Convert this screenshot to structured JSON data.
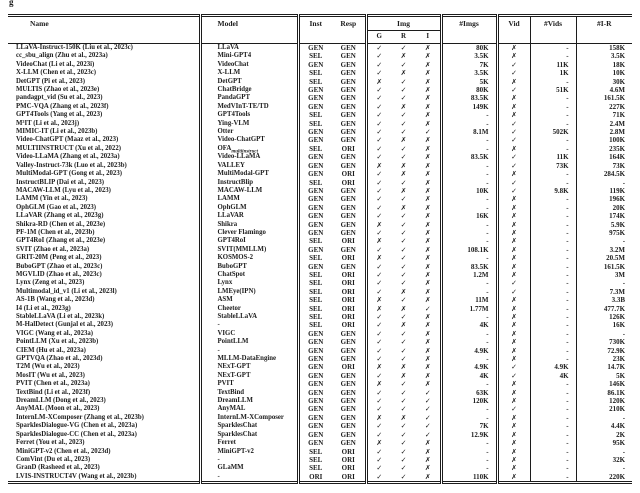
{
  "page": {
    "top_fragment": "g",
    "ink_color": "#1c1c1c",
    "background_color": "#ffffff"
  },
  "table": {
    "headers": {
      "name": "Name",
      "model": "Model",
      "inst": "Inst",
      "resp": "Resp",
      "img_group": "Img",
      "g": "G",
      "r": "R",
      "i": "I",
      "imgs": "#Imgs",
      "vid": "Vid",
      "vids": "#Vids",
      "ir": "#I-R"
    },
    "rows": [
      {
        "name": "LLaVA-Instruct-150K (Liu et al., 2023c)",
        "model": "LLaVA",
        "inst": "GEN",
        "resp": "GEN",
        "g": "✓",
        "r": "✓",
        "i": "✗",
        "imgs": "80K",
        "vid": "✗",
        "vids": "-",
        "ir": "158K"
      },
      {
        "name": "cc_sbu_align (Zhu et al., 2023a)",
        "model": "Mini-GPT4",
        "inst": "SEL",
        "resp": "GEN",
        "g": "✓",
        "r": "✗",
        "i": "✗",
        "imgs": "3.5K",
        "vid": "✗",
        "vids": "-",
        "ir": "3.5K"
      },
      {
        "name": "VideoChat (Li et al., 2023i)",
        "model": "VideoChat",
        "inst": "GEN",
        "resp": "GEN",
        "g": "✓",
        "r": "✓",
        "i": "✗",
        "imgs": "7K",
        "vid": "✓",
        "vids": "11K",
        "ir": "18K"
      },
      {
        "name": "X-LLM (Chen et al., 2023c)",
        "model": "X-LLM",
        "inst": "SEL",
        "resp": "GEN",
        "g": "✓",
        "r": "✗",
        "i": "✗",
        "imgs": "3.5K",
        "vid": "✓",
        "vids": "1K",
        "ir": "10K"
      },
      {
        "name": "DetGPT (Pi et al., 2023)",
        "model": "DetGPT",
        "inst": "SEL",
        "resp": "GEN",
        "g": "✗",
        "r": "✓",
        "i": "✗",
        "imgs": "5K",
        "vid": "✗",
        "vids": "-",
        "ir": "30K"
      },
      {
        "name": "MULTIS (Zhao et al., 2023e)",
        "model": "ChatBridge",
        "inst": "GEN",
        "resp": "GEN",
        "g": "✓",
        "r": "✓",
        "i": "✗",
        "imgs": "80K",
        "vid": "✓",
        "vids": "51K",
        "ir": "4.6M"
      },
      {
        "name": "pandagpt_vid (Su et al., 2023)",
        "model": "PandaGPT",
        "inst": "GEN",
        "resp": "GEN",
        "g": "✓",
        "r": "✓",
        "i": "✗",
        "imgs": "83.5K",
        "vid": "✗",
        "vids": "-",
        "ir": "161.5K"
      },
      {
        "name": "PMC-VQA (Zhang et al., 2023f)",
        "model": "MedVInT-TE/TD",
        "inst": "GEN",
        "resp": "GEN",
        "g": "✓",
        "r": "✗",
        "i": "✗",
        "imgs": "149K",
        "vid": "✗",
        "vids": "-",
        "ir": "227K"
      },
      {
        "name": "GPT4Tools (Yang et al., 2023)",
        "model": "GPT4Tools",
        "inst": "SEL",
        "resp": "GEN",
        "g": "✓",
        "r": "✓",
        "i": "✗",
        "imgs": "-",
        "vid": "✗",
        "vids": "-",
        "ir": "71K"
      },
      {
        "name": "M³IT (Li et al., 2023j)",
        "model": "Ying-VLM",
        "inst": "SEL",
        "resp": "GEN",
        "g": "✓",
        "r": "✓",
        "i": "✗",
        "imgs": "-",
        "vid": "✓",
        "vids": "-",
        "ir": "2.4M"
      },
      {
        "name": "MIMIC-IT (Li et al., 2023b)",
        "model": "Otter",
        "inst": "GEN",
        "resp": "GEN",
        "g": "✓",
        "r": "✓",
        "i": "✓",
        "imgs": "8.1M",
        "vid": "✓",
        "vids": "502K",
        "ir": "2.8M"
      },
      {
        "name": "Video-ChatGPT (Maaz et al., 2023)",
        "model": "Video-ChatGPT",
        "inst": "GEN",
        "resp": "GEN",
        "g": "✓",
        "r": "✗",
        "i": "✗",
        "imgs": "-",
        "vid": "✓",
        "vids": "-",
        "ir": "100K"
      },
      {
        "name": "MULTIINSTRUCT (Xu et al., 2022)",
        "model": "OFA",
        "model_sub": "multiinstruct",
        "inst": "SEL",
        "resp": "ORI",
        "g": "✓",
        "r": "✓",
        "i": "✗",
        "imgs": "-",
        "vid": "✗",
        "vids": "-",
        "ir": "235K"
      },
      {
        "name": "Video-LLaMA (Zhang et al., 2023a)",
        "model": "Video-LLaMA",
        "inst": "GEN",
        "resp": "GEN",
        "g": "✓",
        "r": "✓",
        "i": "✗",
        "imgs": "83.5K",
        "vid": "✓",
        "vids": "11K",
        "ir": "164K"
      },
      {
        "name": "Valley-Instruct-73k (Luo et al., 2023b)",
        "model": "VALLEY",
        "inst": "GEN",
        "resp": "GEN",
        "g": "✗",
        "r": "✗",
        "i": "✗",
        "imgs": "-",
        "vid": "✓",
        "vids": "73K",
        "ir": "73K"
      },
      {
        "name": "MultiModal-GPT (Gong et al., 2023)",
        "model": "MultiModal-GPT",
        "inst": "GEN",
        "resp": "ORI",
        "g": "✓",
        "r": "✗",
        "i": "✗",
        "imgs": "-",
        "vid": "✗",
        "vids": "-",
        "ir": "284.5K"
      },
      {
        "name": "InstructBLIP (Dai et al., 2023)",
        "model": "InstructBlip",
        "inst": "SEL",
        "resp": "ORI",
        "g": "✓",
        "r": "✓",
        "i": "✗",
        "imgs": "-",
        "vid": "✓",
        "vids": "-",
        "ir": "-"
      },
      {
        "name": "MACAW-LLM (Lyu et al., 2023)",
        "model": "MACAW-LLM",
        "inst": "GEN",
        "resp": "GEN",
        "g": "✓",
        "r": "✗",
        "i": "✗",
        "imgs": "10K",
        "vid": "✓",
        "vids": "9.8K",
        "ir": "119K"
      },
      {
        "name": "LAMM (Yin et al., 2023)",
        "model": "LAMM",
        "inst": "GEN",
        "resp": "GEN",
        "g": "✓",
        "r": "✓",
        "i": "✗",
        "imgs": "-",
        "vid": "✗",
        "vids": "-",
        "ir": "196K"
      },
      {
        "name": "OphGLM (Gao et al., 2023)",
        "model": "OphGLM",
        "inst": "GEN",
        "resp": "GEN",
        "g": "✓",
        "r": "✗",
        "i": "✗",
        "imgs": "-",
        "vid": "✗",
        "vids": "-",
        "ir": "20K"
      },
      {
        "name": "LLaVAR (Zhang et al., 2023g)",
        "model": "LLaVAR",
        "inst": "GEN",
        "resp": "GEN",
        "g": "✓",
        "r": "✓",
        "i": "✗",
        "imgs": "16K",
        "vid": "✗",
        "vids": "-",
        "ir": "174K"
      },
      {
        "name": "Shikra-RD (Chen et al., 2023e)",
        "model": "Shikra",
        "inst": "GEN",
        "resp": "GEN",
        "g": "✗",
        "r": "✓",
        "i": "✗",
        "imgs": "-",
        "vid": "✗",
        "vids": "-",
        "ir": "5.9K"
      },
      {
        "name": "PF-1M (Chen et al., 2023b)",
        "model": "Clever Flamingo",
        "inst": "GEN",
        "resp": "GEN",
        "g": "✓",
        "r": "✓",
        "i": "✗",
        "imgs": "-",
        "vid": "✗",
        "vids": "-",
        "ir": "975K"
      },
      {
        "name": "GPT4RoI (Zhang et al., 2023e)",
        "model": "GPT4RoI",
        "inst": "SEL",
        "resp": "ORI",
        "g": "✗",
        "r": "✓",
        "i": "✗",
        "imgs": "-",
        "vid": "✗",
        "vids": "-",
        "ir": "-"
      },
      {
        "name": "SVIT (Zhao et al., 2023a)",
        "model": "SVIT(MMLLM)",
        "inst": "GEN",
        "resp": "GEN",
        "g": "✓",
        "r": "✓",
        "i": "✗",
        "imgs": "108.1K",
        "vid": "✗",
        "vids": "-",
        "ir": "3.2M"
      },
      {
        "name": "GRIT-20M (Peng et al., 2023)",
        "model": "KOSMOS-2",
        "inst": "SEL",
        "resp": "ORI",
        "g": "✗",
        "r": "✓",
        "i": "✗",
        "imgs": "-",
        "vid": "✗",
        "vids": "-",
        "ir": "20.5M"
      },
      {
        "name": "BuboGPT (Zhao et al., 2023c)",
        "model": "BuboGPT",
        "inst": "GEN",
        "resp": "GEN",
        "g": "✓",
        "r": "✓",
        "i": "✗",
        "imgs": "83.5K",
        "vid": "✗",
        "vids": "-",
        "ir": "161.5K"
      },
      {
        "name": "MGVLID (Zhao et al., 2023c)",
        "model": "ChatSpot",
        "inst": "SEL",
        "resp": "ORI",
        "g": "✓",
        "r": "✓",
        "i": "✗",
        "imgs": "1.2M",
        "vid": "✗",
        "vids": "-",
        "ir": "3M"
      },
      {
        "name": "Lynx (Zeng et al., 2023)",
        "model": "Lynx",
        "inst": "SEL",
        "resp": "ORI",
        "g": "✓",
        "r": "✓",
        "i": "✗",
        "imgs": "-",
        "vid": "✓",
        "vids": "-",
        "ir": "-"
      },
      {
        "name": "Multimodal_id_v1 (Li et al., 2023l)",
        "model": "LMEye(IPN)",
        "inst": "SEL",
        "resp": "ORI",
        "g": "✓",
        "r": "✗",
        "i": "✗",
        "imgs": "-",
        "vid": "✓",
        "vids": "-",
        "ir": "7.3M"
      },
      {
        "name": "AS-1B (Wang et al., 2023d)",
        "model": "ASM",
        "inst": "SEL",
        "resp": "ORI",
        "g": "✗",
        "r": "✓",
        "i": "✗",
        "imgs": "11M",
        "vid": "✗",
        "vids": "-",
        "ir": "3.3B"
      },
      {
        "name": "I4 (Li et al., 2023g)",
        "model": "Cheetor",
        "inst": "SEL",
        "resp": "ORI",
        "g": "✗",
        "r": "✗",
        "i": "✓",
        "imgs": "1.77M",
        "vid": "✗",
        "vids": "-",
        "ir": "477.7K"
      },
      {
        "name": "StableLLaVA (Li et al., 2023k)",
        "model": "StableLLaVA",
        "inst": "SEL",
        "resp": "ORI",
        "g": "✓",
        "r": "✓",
        "i": "✗",
        "imgs": "-",
        "vid": "✗",
        "vids": "-",
        "ir": "126K"
      },
      {
        "name": "M-HalDetect (Gunjal et al., 2023)",
        "model": "-",
        "inst": "SEL",
        "resp": "ORI",
        "g": "✓",
        "r": "✗",
        "i": "✗",
        "imgs": "4K",
        "vid": "✗",
        "vids": "-",
        "ir": "16K"
      },
      {
        "name": "VIGC (Wang et al., 2023a)",
        "model": "VIGC",
        "inst": "GEN",
        "resp": "GEN",
        "g": "✓",
        "r": "✓",
        "i": "✗",
        "imgs": "-",
        "vid": "✗",
        "vids": "-",
        "ir": "-"
      },
      {
        "name": "PointLLM (Xu et al., 2023b)",
        "model": "PointLLM",
        "inst": "GEN",
        "resp": "GEN",
        "g": "✓",
        "r": "✓",
        "i": "✗",
        "imgs": "-",
        "vid": "✗",
        "vids": "-",
        "ir": "730K"
      },
      {
        "name": "CIEM (Hu et al., 2023a)",
        "model": "-",
        "inst": "GEN",
        "resp": "GEN",
        "g": "✓",
        "r": "✓",
        "i": "✗",
        "imgs": "4.9K",
        "vid": "✗",
        "vids": "-",
        "ir": "72.9K"
      },
      {
        "name": "GPTVQA (Zhao et al., 2023d)",
        "model": "MLLM-DataEngine",
        "inst": "GEN",
        "resp": "GEN",
        "g": "✓",
        "r": "✓",
        "i": "✗",
        "imgs": "-",
        "vid": "✗",
        "vids": "-",
        "ir": "23K"
      },
      {
        "name": "T2M (Wu et al., 2023)",
        "model": "NExT-GPT",
        "inst": "GEN",
        "resp": "ORI",
        "g": "✗",
        "r": "✗",
        "i": "✗",
        "imgs": "4.9K",
        "vid": "✓",
        "vids": "4.9K",
        "ir": "14.7K"
      },
      {
        "name": "MosIT (Wu et al., 2023)",
        "model": "NExT-GPT",
        "inst": "GEN",
        "resp": "GEN",
        "g": "✓",
        "r": "✗",
        "i": "✗",
        "imgs": "4K",
        "vid": "✓",
        "vids": "4K",
        "ir": "5K"
      },
      {
        "name": "PVIT (Chen et al., 2023a)",
        "model": "PVIT",
        "inst": "GEN",
        "resp": "GEN",
        "g": "✗",
        "r": "✓",
        "i": "✗",
        "imgs": "-",
        "vid": "✗",
        "vids": "-",
        "ir": "146K"
      },
      {
        "name": "TextBind (Li et al., 2023f)",
        "model": "TextBind",
        "inst": "GEN",
        "resp": "GEN",
        "g": "✓",
        "r": "✓",
        "i": "✓",
        "imgs": "63K",
        "vid": "✗",
        "vids": "-",
        "ir": "86.1K"
      },
      {
        "name": "DreamLLM (Dong et al., 2023)",
        "model": "DreamLLM",
        "inst": "GEN",
        "resp": "GEN",
        "g": "✓",
        "r": "✓",
        "i": "✓",
        "imgs": "120K",
        "vid": "✗",
        "vids": "-",
        "ir": "120K"
      },
      {
        "name": "AnyMAL (Moon et al., 2023)",
        "model": "AnyMAL",
        "inst": "GEN",
        "resp": "GEN",
        "g": "✓",
        "r": "✓",
        "i": "✓",
        "imgs": "-",
        "vid": "✓",
        "vids": "-",
        "ir": "210K"
      },
      {
        "name": "InternLM-XComposer (Zhang et al., 2023b)",
        "model": "InternLM-XComposer",
        "inst": "GEN",
        "resp": "GEN",
        "g": "✗",
        "r": "✗",
        "i": "✓",
        "imgs": "-",
        "vid": "✗",
        "vids": "-",
        "ir": "-"
      },
      {
        "name": "SparklesDialogue-VG (Chen et al., 2023a)",
        "model": "SparklesChat",
        "inst": "GEN",
        "resp": "GEN",
        "g": "✓",
        "r": "✓",
        "i": "✓",
        "imgs": "7K",
        "vid": "✗",
        "vids": "-",
        "ir": "4.4K"
      },
      {
        "name": "SparklesDialogue-CC (Chen et al., 2023a)",
        "model": "SparklesChat",
        "inst": "GEN",
        "resp": "GEN",
        "g": "✓",
        "r": "✓",
        "i": "✓",
        "imgs": "12.9K",
        "vid": "✗",
        "vids": "-",
        "ir": "2K"
      },
      {
        "name": "Ferret (You et al., 2023)",
        "model": "Ferret",
        "inst": "GEN",
        "resp": "GEN",
        "g": "✗",
        "r": "✓",
        "i": "✗",
        "imgs": "-",
        "vid": "✗",
        "vids": "-",
        "ir": "95K"
      },
      {
        "name": "MiniGPT-v2 (Chen et al., 2023d)",
        "model": "MiniGPT-v2",
        "inst": "SEL",
        "resp": "ORI",
        "g": "✓",
        "r": "✓",
        "i": "✗",
        "imgs": "-",
        "vid": "✗",
        "vids": "-",
        "ir": "-"
      },
      {
        "name": "ComVint (Du et al., 2023)",
        "model": "-",
        "inst": "SEL",
        "resp": "ORI",
        "g": "✓",
        "r": "✓",
        "i": "✗",
        "imgs": "-",
        "vid": "✗",
        "vids": "-",
        "ir": "32K"
      },
      {
        "name": "GranD (Rasheed et al., 2023)",
        "model": "GLaMM",
        "inst": "SEL",
        "resp": "ORI",
        "g": "✓",
        "r": "✓",
        "i": "✗",
        "imgs": "-",
        "vid": "✗",
        "vids": "-",
        "ir": "-"
      },
      {
        "name": "LVIS-INSTRUCT4V (Wang et al., 2023b)",
        "model": "-",
        "inst": "ORI",
        "resp": "ORI",
        "g": "✓",
        "r": "✓",
        "i": "✗",
        "imgs": "110K",
        "vid": "✗",
        "vids": "-",
        "ir": "220K"
      }
    ]
  }
}
